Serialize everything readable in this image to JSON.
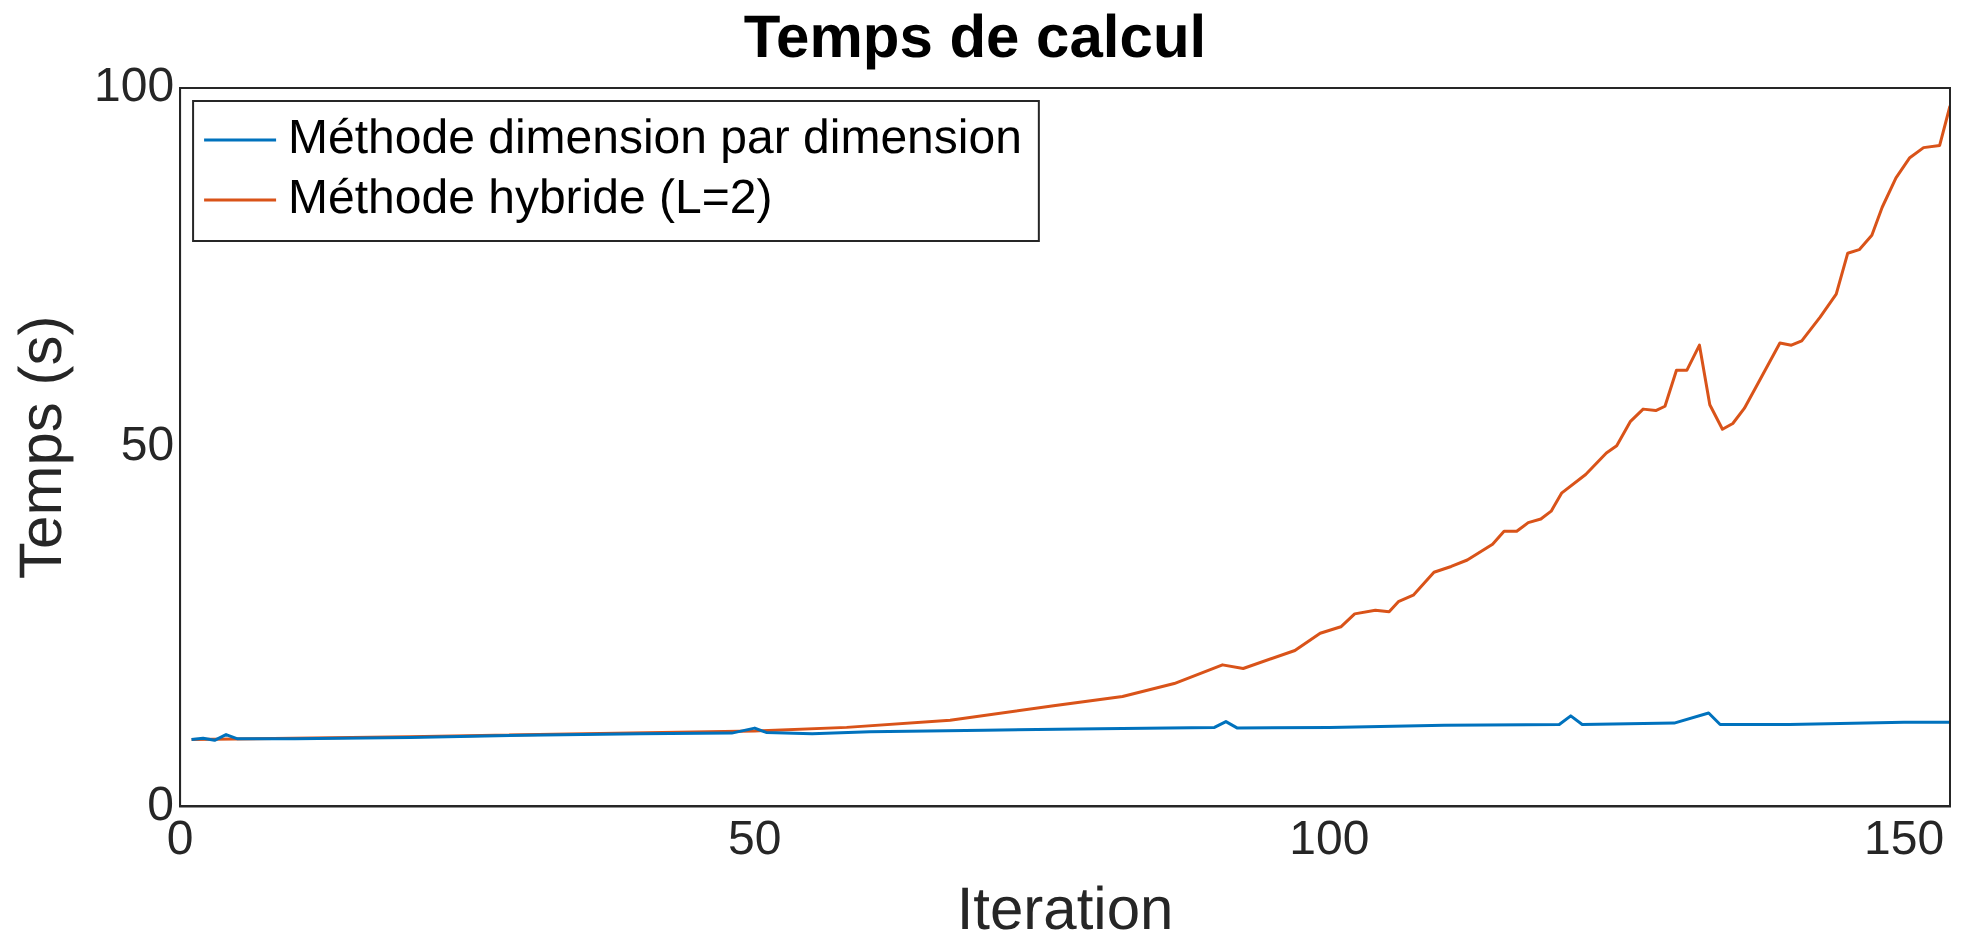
{
  "chart_data": {
    "type": "line",
    "title": "Temps de calcul",
    "xlabel": "Iteration",
    "ylabel": "Temps (s)",
    "xlim": [
      0,
      154
    ],
    "xticks": [
      0,
      50,
      100,
      150
    ],
    "ylim": [
      0,
      100
    ],
    "yticks": [
      0,
      50,
      100
    ],
    "grid": false,
    "legend": "top left",
    "marker": "none",
    "line_style": "solid",
    "series": [
      {
        "name": "Méthode dimension par dimension",
        "color": "#0072bd",
        "x": [
          1,
          2,
          3,
          4,
          5,
          10,
          20,
          30,
          40,
          48,
          50,
          51,
          55,
          60,
          70,
          80,
          90,
          91,
          92,
          100,
          110,
          120,
          121,
          122,
          130,
          133,
          134,
          140,
          150,
          154
        ],
        "values": [
          9.3,
          9.5,
          9.2,
          10,
          9.4,
          9.4,
          9.6,
          9.9,
          10.1,
          10.2,
          10.9,
          10.3,
          10.1,
          10.4,
          10.6,
          10.8,
          11,
          11.8,
          10.9,
          11,
          11.3,
          11.4,
          12.6,
          11.4,
          11.6,
          13,
          11.4,
          11.4,
          11.7,
          11.7
        ]
      },
      {
        "name": "Méthode hybride (L=2)",
        "color": "#d95319",
        "x": [
          1,
          20,
          50,
          58,
          67,
          76,
          82,
          86.5,
          90.7,
          92.5,
          97,
          99.2,
          101,
          102.2,
          104,
          105.2,
          106,
          107.3,
          109.1,
          110.6,
          112,
          114.2,
          115.2,
          116.3,
          117.3,
          118.4,
          119.3,
          120.2,
          122.3,
          124.1,
          125,
          126.2,
          127.3,
          128.4,
          129.2,
          130.2,
          131.1,
          132.2,
          133.1,
          134.2,
          135.1,
          136.1,
          137.3,
          139.2,
          140.2,
          141.1,
          142.7,
          144.1,
          145.1,
          146.1,
          147.2,
          148.1,
          149.3,
          150.5,
          151.7,
          153.1,
          154
        ],
        "values": [
          9.3,
          9.7,
          10.5,
          11,
          12,
          14,
          15.3,
          17.1,
          19.7,
          19.2,
          21.7,
          24.1,
          25,
          26.8,
          27.3,
          27.1,
          28.5,
          29.4,
          32.6,
          33.4,
          34.3,
          36.5,
          38.3,
          38.3,
          39.5,
          40,
          41.1,
          43.6,
          46.2,
          49.2,
          50.2,
          53.6,
          55.3,
          55.1,
          55.7,
          60.7,
          60.7,
          64.2,
          55.9,
          52.5,
          53.3,
          55.4,
          58.9,
          64.5,
          64.2,
          64.8,
          68.1,
          71.3,
          77,
          77.5,
          79.5,
          83.4,
          87.5,
          90.3,
          91.7,
          92,
          97.5
        ]
      }
    ]
  }
}
